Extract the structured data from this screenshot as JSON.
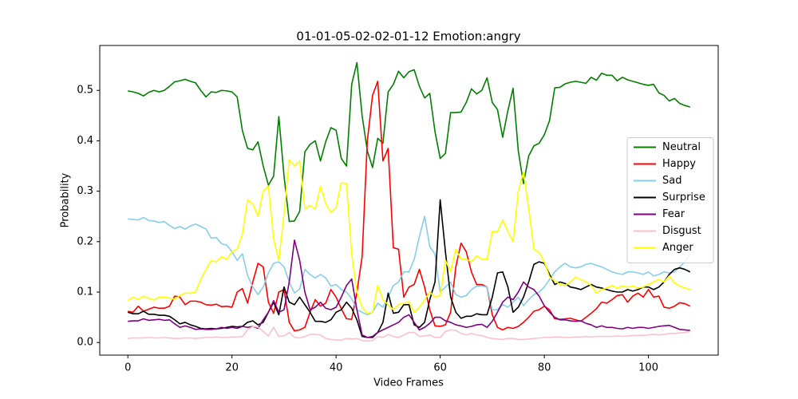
{
  "chart_data": {
    "type": "line",
    "title": "01-01-05-02-02-01-12 Emotion:angry",
    "xlabel": "Video Frames",
    "ylabel": "Probability",
    "x": [
      0,
      1,
      2,
      3,
      4,
      5,
      6,
      7,
      8,
      9,
      10,
      11,
      12,
      13,
      14,
      15,
      16,
      17,
      18,
      19,
      20,
      21,
      22,
      23,
      24,
      25,
      26,
      27,
      28,
      29,
      30,
      31,
      32,
      33,
      34,
      35,
      36,
      37,
      38,
      39,
      40,
      41,
      42,
      43,
      44,
      45,
      46,
      47,
      48,
      49,
      50,
      51,
      52,
      53,
      54,
      55,
      56,
      57,
      58,
      59,
      60,
      61,
      62,
      63,
      64,
      65,
      66,
      67,
      68,
      69,
      70,
      71,
      72,
      73,
      74,
      75,
      76,
      77,
      78,
      79,
      80,
      81,
      82,
      83,
      84,
      85,
      86,
      87,
      88,
      89,
      90,
      91,
      92,
      93,
      94,
      95,
      96,
      97,
      98,
      99,
      100,
      101,
      102,
      103,
      104,
      105,
      106,
      107,
      108
    ],
    "xlim": [
      -5.4,
      113.4
    ],
    "xticks": [
      0,
      20,
      40,
      60,
      80,
      100
    ],
    "ylim": [
      -0.025,
      0.589
    ],
    "yticks": [
      {
        "value": 0,
        "label": "0.0"
      },
      0.1,
      0.2,
      0.3,
      0.4,
      0.5
    ],
    "legend": "center right",
    "series": [
      {
        "name": "Neutral",
        "color": "#008000",
        "values": [
          0.499,
          0.497,
          0.494,
          0.489,
          0.496,
          0.5,
          0.497,
          0.5,
          0.508,
          0.517,
          0.519,
          0.522,
          0.518,
          0.515,
          0.5,
          0.487,
          0.497,
          0.496,
          0.5,
          0.499,
          0.497,
          0.487,
          0.42,
          0.385,
          0.382,
          0.398,
          0.35,
          0.312,
          0.33,
          0.448,
          0.33,
          0.24,
          0.241,
          0.26,
          0.378,
          0.393,
          0.4,
          0.36,
          0.398,
          0.426,
          0.421,
          0.365,
          0.35,
          0.512,
          0.555,
          0.45,
          0.38,
          0.347,
          0.405,
          0.395,
          0.497,
          0.512,
          0.538,
          0.525,
          0.537,
          0.541,
          0.508,
          0.485,
          0.494,
          0.418,
          0.365,
          0.375,
          0.456,
          0.456,
          0.457,
          0.476,
          0.503,
          0.493,
          0.5,
          0.525,
          0.476,
          0.462,
          0.407,
          0.46,
          0.504,
          0.38,
          0.315,
          0.37,
          0.39,
          0.395,
          0.412,
          0.44,
          0.505,
          0.506,
          0.513,
          0.516,
          0.518,
          0.516,
          0.514,
          0.526,
          0.52,
          0.534,
          0.53,
          0.53,
          0.519,
          0.526,
          0.521,
          0.518,
          0.515,
          0.512,
          0.51,
          0.512,
          0.495,
          0.49,
          0.479,
          0.484,
          0.474,
          0.47,
          0.467
        ]
      },
      {
        "name": "Happy",
        "color": "#ff0000",
        "values": [
          0.062,
          0.06,
          0.072,
          0.062,
          0.066,
          0.07,
          0.068,
          0.068,
          0.072,
          0.092,
          0.09,
          0.075,
          0.082,
          0.082,
          0.08,
          0.075,
          0.074,
          0.076,
          0.071,
          0.072,
          0.07,
          0.1,
          0.107,
          0.078,
          0.12,
          0.157,
          0.15,
          0.08,
          0.058,
          0.1,
          0.105,
          0.04,
          0.023,
          0.025,
          0.03,
          0.06,
          0.085,
          0.072,
          0.078,
          0.105,
          0.09,
          0.067,
          0.047,
          0.046,
          0.1,
          0.17,
          0.4,
          0.49,
          0.518,
          0.36,
          0.385,
          0.188,
          0.185,
          0.09,
          0.11,
          0.115,
          0.145,
          0.11,
          0.065,
          0.033,
          0.032,
          0.035,
          0.06,
          0.15,
          0.197,
          0.18,
          0.14,
          0.115,
          0.115,
          0.11,
          0.055,
          0.03,
          0.025,
          0.03,
          0.028,
          0.032,
          0.04,
          0.05,
          0.062,
          0.065,
          0.072,
          0.065,
          0.047,
          0.046,
          0.047,
          0.048,
          0.045,
          0.042,
          0.05,
          0.058,
          0.067,
          0.08,
          0.078,
          0.085,
          0.093,
          0.095,
          0.08,
          0.092,
          0.098,
          0.09,
          0.105,
          0.09,
          0.092,
          0.07,
          0.068,
          0.072,
          0.079,
          0.077,
          0.072
        ]
      },
      {
        "name": "Sad",
        "color": "#87ceeb",
        "values": [
          0.245,
          0.244,
          0.243,
          0.248,
          0.242,
          0.241,
          0.238,
          0.24,
          0.232,
          0.226,
          0.23,
          0.225,
          0.231,
          0.235,
          0.23,
          0.225,
          0.207,
          0.208,
          0.196,
          0.193,
          0.18,
          0.163,
          0.176,
          0.133,
          0.11,
          0.095,
          0.11,
          0.138,
          0.157,
          0.16,
          0.15,
          0.12,
          0.098,
          0.106,
          0.145,
          0.135,
          0.128,
          0.135,
          0.128,
          0.112,
          0.115,
          0.105,
          0.1,
          0.087,
          0.065,
          0.06,
          0.055,
          0.06,
          0.078,
          0.07,
          0.09,
          0.113,
          0.12,
          0.14,
          0.14,
          0.165,
          0.21,
          0.25,
          0.19,
          0.175,
          0.1,
          0.11,
          0.12,
          0.095,
          0.09,
          0.093,
          0.105,
          0.112,
          0.112,
          0.11,
          0.065,
          0.065,
          0.075,
          0.07,
          0.08,
          0.09,
          0.073,
          0.085,
          0.095,
          0.1,
          0.11,
          0.125,
          0.14,
          0.15,
          0.157,
          0.15,
          0.148,
          0.15,
          0.155,
          0.157,
          0.153,
          0.15,
          0.145,
          0.14,
          0.137,
          0.135,
          0.14,
          0.14,
          0.138,
          0.135,
          0.14,
          0.132,
          0.135,
          0.14,
          0.138,
          0.14,
          0.15,
          0.16,
          0.175
        ]
      },
      {
        "name": "Surprise",
        "color": "#000000",
        "values": [
          0.06,
          0.057,
          0.057,
          0.062,
          0.056,
          0.056,
          0.054,
          0.054,
          0.052,
          0.045,
          0.037,
          0.04,
          0.035,
          0.032,
          0.028,
          0.027,
          0.028,
          0.027,
          0.028,
          0.03,
          0.032,
          0.031,
          0.032,
          0.04,
          0.043,
          0.035,
          0.04,
          0.06,
          0.08,
          0.055,
          0.11,
          0.08,
          0.075,
          0.09,
          0.075,
          0.06,
          0.042,
          0.042,
          0.04,
          0.045,
          0.06,
          0.065,
          0.08,
          0.068,
          0.045,
          0.012,
          0.01,
          0.01,
          0.02,
          0.04,
          0.098,
          0.058,
          0.06,
          0.075,
          0.075,
          0.035,
          0.03,
          0.04,
          0.085,
          0.12,
          0.283,
          0.18,
          0.09,
          0.06,
          0.048,
          0.052,
          0.052,
          0.057,
          0.055,
          0.055,
          0.09,
          0.138,
          0.14,
          0.11,
          0.06,
          0.07,
          0.09,
          0.12,
          0.155,
          0.16,
          0.157,
          0.135,
          0.115,
          0.12,
          0.117,
          0.11,
          0.108,
          0.105,
          0.11,
          0.115,
          0.11,
          0.108,
          0.105,
          0.102,
          0.1,
          0.1,
          0.105,
          0.102,
          0.105,
          0.11,
          0.11,
          0.105,
          0.11,
          0.12,
          0.135,
          0.145,
          0.148,
          0.145,
          0.14
        ]
      },
      {
        "name": "Fear",
        "color": "#800080",
        "values": [
          0.042,
          0.043,
          0.043,
          0.047,
          0.044,
          0.045,
          0.046,
          0.044,
          0.045,
          0.037,
          0.03,
          0.033,
          0.03,
          0.026,
          0.027,
          0.026,
          0.026,
          0.027,
          0.03,
          0.028,
          0.03,
          0.028,
          0.032,
          0.03,
          0.032,
          0.028,
          0.045,
          0.06,
          0.083,
          0.06,
          0.065,
          0.12,
          0.203,
          0.163,
          0.1,
          0.065,
          0.07,
          0.08,
          0.068,
          0.065,
          0.07,
          0.09,
          0.113,
          0.126,
          0.065,
          0.015,
          0.01,
          0.012,
          0.02,
          0.025,
          0.03,
          0.035,
          0.04,
          0.05,
          0.055,
          0.04,
          0.025,
          0.03,
          0.038,
          0.05,
          0.05,
          0.043,
          0.04,
          0.035,
          0.033,
          0.03,
          0.032,
          0.035,
          0.036,
          0.03,
          0.042,
          0.06,
          0.08,
          0.09,
          0.085,
          0.1,
          0.12,
          0.11,
          0.105,
          0.092,
          0.073,
          0.06,
          0.05,
          0.045,
          0.045,
          0.043,
          0.042,
          0.043,
          0.038,
          0.035,
          0.03,
          0.033,
          0.03,
          0.03,
          0.028,
          0.027,
          0.03,
          0.028,
          0.03,
          0.03,
          0.028,
          0.03,
          0.032,
          0.033,
          0.034,
          0.03,
          0.026,
          0.025,
          0.024
        ]
      },
      {
        "name": "Disgust",
        "color": "#ffc0cb",
        "values": [
          0.008,
          0.009,
          0.009,
          0.009,
          0.01,
          0.009,
          0.009,
          0.01,
          0.009,
          0.008,
          0.008,
          0.009,
          0.009,
          0.008,
          0.009,
          0.01,
          0.01,
          0.011,
          0.01,
          0.01,
          0.011,
          0.011,
          0.012,
          0.025,
          0.032,
          0.03,
          0.022,
          0.013,
          0.03,
          0.012,
          0.013,
          0.02,
          0.01,
          0.009,
          0.012,
          0.016,
          0.016,
          0.015,
          0.008,
          0.006,
          0.005,
          0.005,
          0.008,
          0.007,
          0.008,
          0.004,
          0.003,
          0.004,
          0.012,
          0.01,
          0.016,
          0.012,
          0.01,
          0.015,
          0.02,
          0.02,
          0.012,
          0.013,
          0.015,
          0.01,
          0.01,
          0.022,
          0.025,
          0.024,
          0.018,
          0.015,
          0.018,
          0.015,
          0.014,
          0.01,
          0.008,
          0.007,
          0.006,
          0.008,
          0.008,
          0.006,
          0.006,
          0.007,
          0.008,
          0.009,
          0.01,
          0.01,
          0.011,
          0.011,
          0.01,
          0.01,
          0.011,
          0.011,
          0.012,
          0.011,
          0.012,
          0.012,
          0.012,
          0.012,
          0.013,
          0.012,
          0.013,
          0.014,
          0.014,
          0.014,
          0.015,
          0.016,
          0.015,
          0.016,
          0.018,
          0.018,
          0.019,
          0.02,
          0.022
        ]
      },
      {
        "name": "Anger",
        "color": "#ffff00",
        "values": [
          0.083,
          0.09,
          0.085,
          0.092,
          0.088,
          0.084,
          0.09,
          0.09,
          0.088,
          0.086,
          0.093,
          0.098,
          0.098,
          0.1,
          0.125,
          0.145,
          0.162,
          0.16,
          0.17,
          0.165,
          0.18,
          0.185,
          0.215,
          0.283,
          0.275,
          0.25,
          0.3,
          0.31,
          0.205,
          0.163,
          0.255,
          0.363,
          0.35,
          0.36,
          0.265,
          0.272,
          0.265,
          0.31,
          0.275,
          0.258,
          0.268,
          0.317,
          0.315,
          0.175,
          0.1,
          0.07,
          0.058,
          0.06,
          0.113,
          0.085,
          0.075,
          0.065,
          0.075,
          0.078,
          0.08,
          0.06,
          0.07,
          0.085,
          0.1,
          0.09,
          0.093,
          0.163,
          0.14,
          0.185,
          0.165,
          0.165,
          0.16,
          0.172,
          0.165,
          0.165,
          0.22,
          0.22,
          0.243,
          0.22,
          0.2,
          0.3,
          0.338,
          0.265,
          0.185,
          0.178,
          0.16,
          0.13,
          0.122,
          0.115,
          0.113,
          0.12,
          0.13,
          0.125,
          0.12,
          0.113,
          0.098,
          0.105,
          0.108,
          0.113,
          0.108,
          0.112,
          0.11,
          0.112,
          0.108,
          0.11,
          0.115,
          0.12,
          0.125,
          0.12,
          0.132,
          0.118,
          0.112,
          0.108,
          0.105
        ]
      }
    ]
  }
}
